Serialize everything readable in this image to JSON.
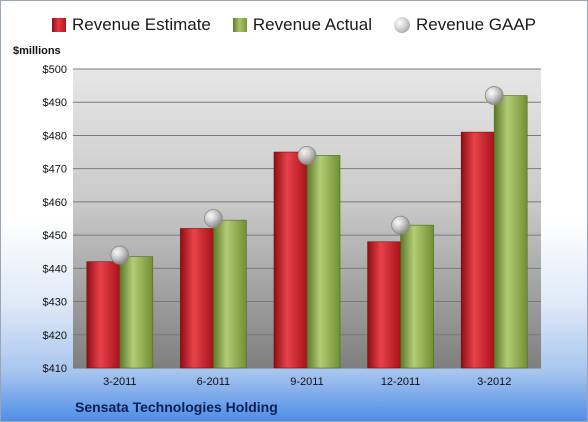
{
  "legend": {
    "estimate": "Revenue Estimate",
    "actual": "Revenue Actual",
    "gaap": "Revenue GAAP"
  },
  "unit_label": "$millions",
  "company": "Sensata Technologies Holding",
  "colors": {
    "estimate": "#c81e26",
    "actual": "#8fac4f",
    "gaap": "#b8b8b8"
  },
  "chart_data": {
    "type": "bar",
    "title": "",
    "ylabel": "$millions",
    "xlabel": "",
    "ylim": [
      410,
      500
    ],
    "ytick_step": 10,
    "ytick_prefix": "$",
    "grid": true,
    "legend_position": "top",
    "categories": [
      "3-2011",
      "6-2011",
      "9-2011",
      "12-2011",
      "3-2012"
    ],
    "series": [
      {
        "name": "Revenue Estimate",
        "type": "bar",
        "values": [
          442,
          452,
          475,
          448,
          481
        ]
      },
      {
        "name": "Revenue Actual",
        "type": "bar",
        "values": [
          443.5,
          454.5,
          474,
          453,
          492
        ]
      },
      {
        "name": "Revenue GAAP",
        "type": "marker",
        "values": [
          444,
          455,
          474,
          453,
          492
        ]
      }
    ]
  }
}
